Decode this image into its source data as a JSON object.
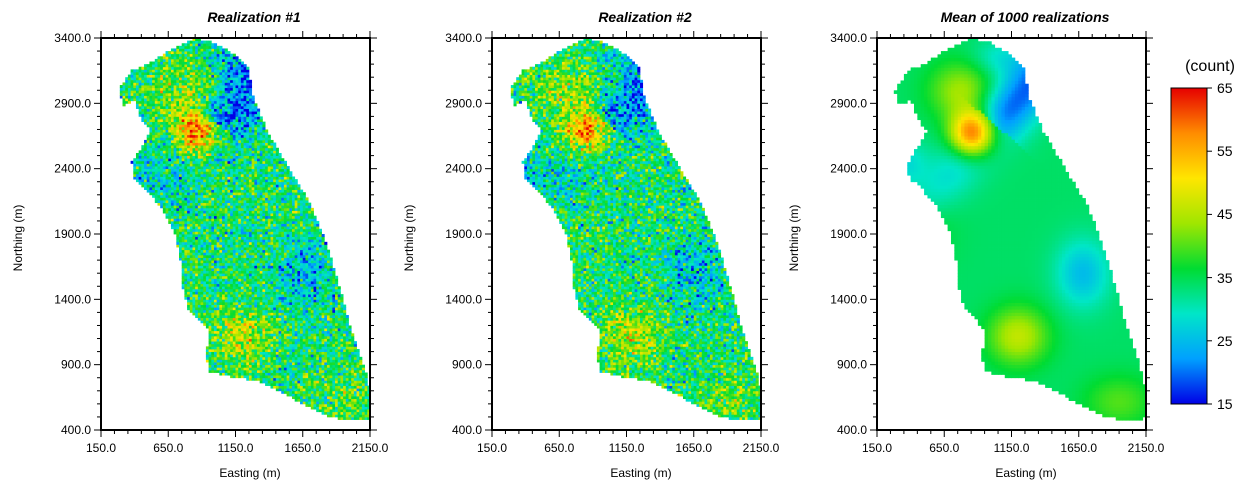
{
  "colorbar": {
    "title": "(count)",
    "ticks": [
      65,
      55,
      45,
      35,
      25,
      15
    ],
    "range": [
      15,
      65
    ],
    "colors": [
      "#0000e6",
      "#00a0ff",
      "#00e6c8",
      "#00dc32",
      "#a0e600",
      "#ffe600",
      "#ff8c00",
      "#e60000"
    ]
  },
  "chart_data": [
    {
      "type": "heatmap",
      "title": "Realization #1",
      "xlabel": "Easting (m)",
      "ylabel": "Northing (m)",
      "xlim": [
        150,
        2150
      ],
      "ylim": [
        400,
        3400
      ],
      "xticks": [
        "150.0",
        "650.0",
        "1150.0",
        "1650.0",
        "2150.0"
      ],
      "yticks": [
        "400.0",
        "900.0",
        "1400.0",
        "1900.0",
        "2400.0",
        "2900.0",
        "3400.0"
      ],
      "value_range": [
        15,
        65
      ],
      "style": "noisy",
      "seed": 11
    },
    {
      "type": "heatmap",
      "title": "Realization #2",
      "xlabel": "Easting (m)",
      "ylabel": "Northing (m)",
      "xlim": [
        150,
        2150
      ],
      "ylim": [
        400,
        3400
      ],
      "xticks": [
        "150.0",
        "650.0",
        "1150.0",
        "1650.0",
        "2150.0"
      ],
      "yticks": [
        "400.0",
        "900.0",
        "1400.0",
        "1900.0",
        "2400.0",
        "2900.0",
        "3400.0"
      ],
      "value_range": [
        15,
        65
      ],
      "style": "noisy",
      "seed": 29
    },
    {
      "type": "heatmap",
      "title": "Mean of 1000 realizations",
      "xlabel": "Easting (m)",
      "ylabel": "Northing (m)",
      "xlim": [
        150,
        2150
      ],
      "ylim": [
        400,
        3400
      ],
      "xticks": [
        "150.0",
        "650.0",
        "1150.0",
        "1650.0",
        "2150.0"
      ],
      "yticks": [
        "400.0",
        "900.0",
        "1400.0",
        "1900.0",
        "2400.0",
        "2900.0",
        "3400.0"
      ],
      "value_range": [
        15,
        65
      ],
      "style": "smooth",
      "seed": 0
    }
  ],
  "domain_boundary": [
    [
      850,
      3400
    ],
    [
      1000,
      3360
    ],
    [
      1130,
      3280
    ],
    [
      1250,
      3170
    ],
    [
      1270,
      2980
    ],
    [
      1380,
      2700
    ],
    [
      1550,
      2400
    ],
    [
      1700,
      2150
    ],
    [
      1800,
      1900
    ],
    [
      1880,
      1650
    ],
    [
      1950,
      1400
    ],
    [
      2000,
      1200
    ],
    [
      2070,
      1000
    ],
    [
      2130,
      800
    ],
    [
      2160,
      600
    ],
    [
      2150,
      490
    ],
    [
      2030,
      470
    ],
    [
      1850,
      500
    ],
    [
      1650,
      600
    ],
    [
      1480,
      700
    ],
    [
      1300,
      780
    ],
    [
      1150,
      800
    ],
    [
      1030,
      830
    ],
    [
      950,
      850
    ],
    [
      930,
      980
    ],
    [
      960,
      1150
    ],
    [
      880,
      1250
    ],
    [
      800,
      1330
    ],
    [
      760,
      1480
    ],
    [
      740,
      1700
    ],
    [
      700,
      1900
    ],
    [
      600,
      2100
    ],
    [
      480,
      2250
    ],
    [
      390,
      2330
    ],
    [
      380,
      2450
    ],
    [
      460,
      2580
    ],
    [
      520,
      2700
    ],
    [
      450,
      2780
    ],
    [
      400,
      2930
    ],
    [
      320,
      2880
    ],
    [
      280,
      3000
    ],
    [
      380,
      3150
    ],
    [
      500,
      3200
    ],
    [
      620,
      3280
    ],
    [
      720,
      3340
    ]
  ]
}
